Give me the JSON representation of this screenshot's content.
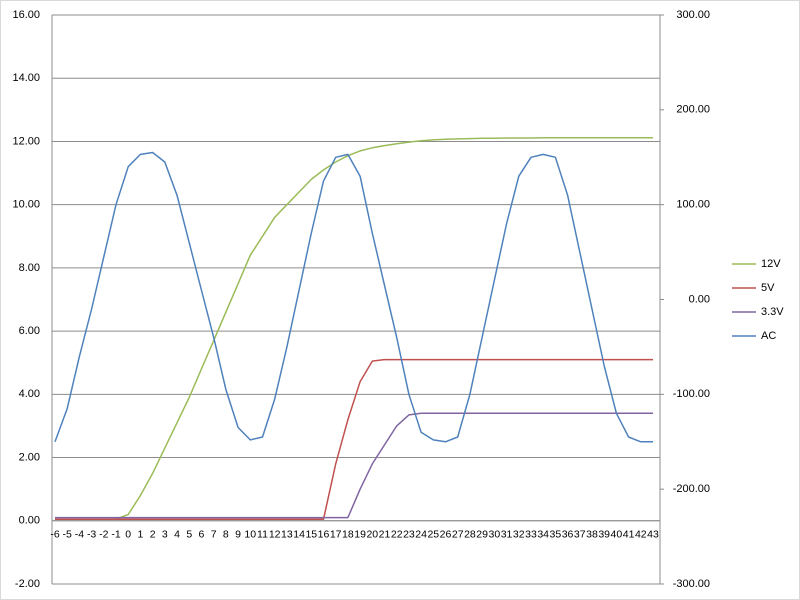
{
  "chart_data": {
    "type": "line",
    "categories": [
      -6,
      -5,
      -4,
      -3,
      -2,
      -1,
      0,
      1,
      2,
      3,
      4,
      5,
      6,
      7,
      8,
      9,
      10,
      11,
      12,
      13,
      14,
      15,
      16,
      17,
      18,
      19,
      20,
      21,
      22,
      23,
      24,
      25,
      26,
      27,
      28,
      29,
      30,
      31,
      32,
      33,
      34,
      35,
      36,
      37,
      38,
      39,
      40,
      41,
      42,
      43
    ],
    "series": [
      {
        "name": "12V",
        "color": "#9bbb59",
        "axis": "y",
        "values": [
          0.05,
          0.05,
          0.05,
          0.05,
          0.05,
          0.05,
          0.2,
          0.8,
          1.5,
          2.3,
          3.1,
          3.9,
          4.8,
          5.7,
          6.6,
          7.5,
          8.4,
          9.0,
          9.6,
          10.0,
          10.4,
          10.8,
          11.1,
          11.35,
          11.55,
          11.7,
          11.8,
          11.87,
          11.93,
          11.98,
          12.02,
          12.05,
          12.07,
          12.08,
          12.09,
          12.1,
          12.1,
          12.11,
          12.11,
          12.11,
          12.12,
          12.12,
          12.12,
          12.12,
          12.12,
          12.12,
          12.12,
          12.12,
          12.12,
          12.12
        ]
      },
      {
        "name": "5V",
        "color": "#c0504d",
        "axis": "y",
        "values": [
          0.05,
          0.05,
          0.05,
          0.05,
          0.05,
          0.05,
          0.05,
          0.05,
          0.05,
          0.05,
          0.05,
          0.05,
          0.05,
          0.05,
          0.05,
          0.05,
          0.05,
          0.05,
          0.05,
          0.05,
          0.05,
          0.05,
          0.05,
          1.8,
          3.2,
          4.4,
          5.05,
          5.1,
          5.1,
          5.1,
          5.1,
          5.1,
          5.1,
          5.1,
          5.1,
          5.1,
          5.1,
          5.1,
          5.1,
          5.1,
          5.1,
          5.1,
          5.1,
          5.1,
          5.1,
          5.1,
          5.1,
          5.1,
          5.1,
          5.1
        ]
      },
      {
        "name": "3.3V",
        "color": "#8064a2",
        "axis": "y",
        "values": [
          0.1,
          0.1,
          0.1,
          0.1,
          0.1,
          0.1,
          0.1,
          0.1,
          0.1,
          0.1,
          0.1,
          0.1,
          0.1,
          0.1,
          0.1,
          0.1,
          0.1,
          0.1,
          0.1,
          0.1,
          0.1,
          0.1,
          0.1,
          0.1,
          0.1,
          1.0,
          1.8,
          2.4,
          3.0,
          3.35,
          3.4,
          3.4,
          3.4,
          3.4,
          3.4,
          3.4,
          3.4,
          3.4,
          3.4,
          3.4,
          3.4,
          3.4,
          3.4,
          3.4,
          3.4,
          3.4,
          3.4,
          3.4,
          3.4,
          3.4
        ]
      },
      {
        "name": "AC",
        "color": "#4f81bd",
        "axis": "y2",
        "values": [
          -150,
          -115,
          -60,
          -10,
          45,
          100,
          140,
          153,
          155,
          145,
          110,
          60,
          10,
          -40,
          -95,
          -135,
          -148,
          -145,
          -105,
          -50,
          10,
          70,
          125,
          150,
          153,
          130,
          70,
          15,
          -40,
          -100,
          -140,
          -148,
          -150,
          -145,
          -100,
          -40,
          20,
          80,
          130,
          150,
          153,
          150,
          110,
          50,
          -10,
          -70,
          -120,
          -145,
          -150,
          -150
        ]
      }
    ],
    "ylim": [
      -2,
      16
    ],
    "yticks": [
      {
        "value": -2,
        "label": "-2.00"
      },
      {
        "value": 0,
        "label": "0.00"
      },
      {
        "value": 2,
        "label": "2.00"
      },
      {
        "value": 4,
        "label": "4.00"
      },
      {
        "value": 6,
        "label": "6.00"
      },
      {
        "value": 8,
        "label": "8.00"
      },
      {
        "value": 10,
        "label": "10.00"
      },
      {
        "value": 12,
        "label": "12.00"
      },
      {
        "value": 14,
        "label": "14.00"
      },
      {
        "value": 16,
        "label": "16.00"
      }
    ],
    "y2lim": [
      -300,
      300
    ],
    "y2ticks": [
      {
        "value": -300,
        "label": "-300.00"
      },
      {
        "value": -200,
        "label": "-200.00"
      },
      {
        "value": -100,
        "label": "-100.00"
      },
      {
        "value": 0,
        "label": "0.00"
      },
      {
        "value": 100,
        "label": "100.00"
      },
      {
        "value": 200,
        "label": "200.00"
      },
      {
        "value": 300,
        "label": "300.00"
      }
    ],
    "grid": true,
    "legend": "right"
  }
}
